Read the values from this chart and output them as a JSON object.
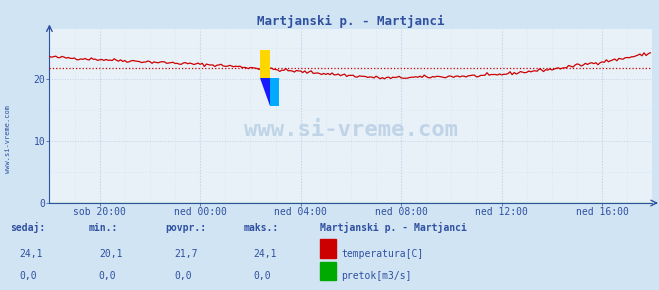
{
  "title": "Martjanski p. - Martjanci",
  "bg_color": "#d0e4f4",
  "plot_bg_color": "#e8f0f8",
  "grid_color_major": "#c0d4e8",
  "grid_color_minor": "#d4e4f0",
  "axis_color": "#3050a0",
  "tick_label_color": "#3050a0",
  "title_color": "#3050a0",
  "ylim": [
    0,
    28
  ],
  "yticks": [
    0,
    10,
    20
  ],
  "xlim": [
    0,
    288
  ],
  "xtick_positions": [
    24,
    72,
    120,
    168,
    216,
    264
  ],
  "xtick_labels": [
    "sob 20:00",
    "ned 00:00",
    "ned 04:00",
    "ned 08:00",
    "ned 12:00",
    "ned 16:00"
  ],
  "avg_value": 21.7,
  "temp_line_color": "#cc0000",
  "avg_line_color": "#cc0000",
  "flow_line_color": "#00aa00",
  "watermark_text": "www.si-vreme.com",
  "watermark_color": "#c0d4e8",
  "legend_title": "Martjanski p. - Martjanci",
  "legend_title_color": "#3050a0",
  "legend_label_color": "#3050a0",
  "sedaj_label": "sedaj:",
  "min_label": "min.:",
  "povpr_label": "povpr.:",
  "maks_label": "maks.:",
  "sedaj_temp": "24,1",
  "min_temp": "20,1",
  "povpr_temp": "21,7",
  "maks_temp": "24,1",
  "sedaj_flow": "0,0",
  "min_flow": "0,0",
  "povpr_flow": "0,0",
  "maks_flow": "0,0",
  "temp_legend_label": "temperatura[C]",
  "flow_legend_label": "pretok[m3/s]",
  "sidebar_text": "www.si-vreme.com",
  "sidebar_color": "#3050a0",
  "logo_yellow": "#FFD700",
  "logo_blue_light": "#00AAFF",
  "logo_blue_dark": "#1A1AFF"
}
